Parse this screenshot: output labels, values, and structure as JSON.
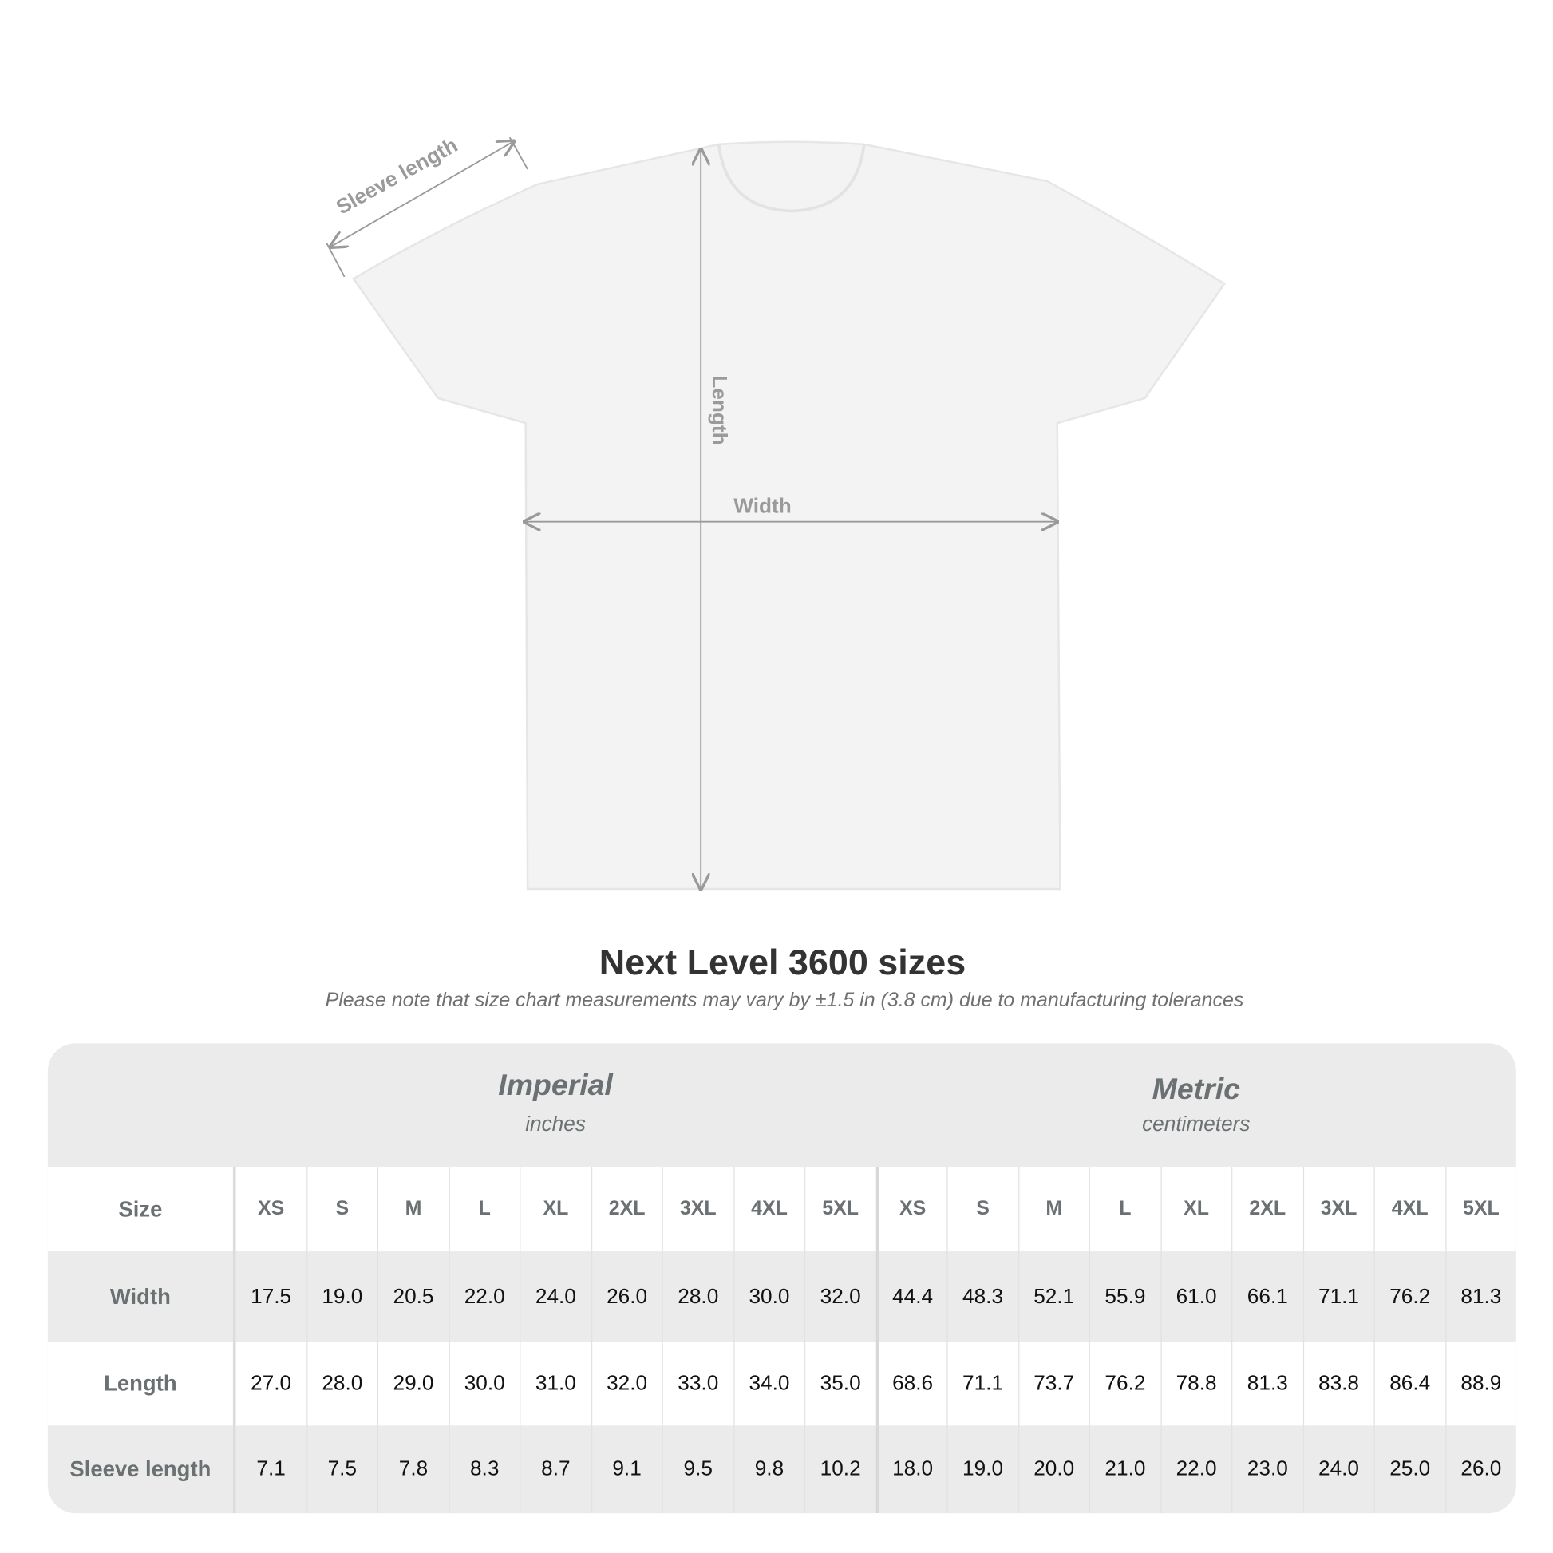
{
  "diagram": {
    "labels": {
      "sleeve": "Sleeve length",
      "length": "Length",
      "width": "Width"
    }
  },
  "title": "Next Level 3600 sizes",
  "subtitle": "Please note that size chart measurements may vary by ±1.5 in (3.8 cm) due to manufacturing tolerances",
  "table": {
    "imperial": {
      "name": "Imperial",
      "unit": "inches"
    },
    "metric": {
      "name": "Metric",
      "unit": "centimeters"
    },
    "size_label": "Size",
    "sizes": [
      "XS",
      "S",
      "M",
      "L",
      "XL",
      "2XL",
      "3XL",
      "4XL",
      "5XL"
    ],
    "rows": [
      {
        "label": "Width",
        "imperial": [
          "17.5",
          "19.0",
          "20.5",
          "22.0",
          "24.0",
          "26.0",
          "28.0",
          "30.0",
          "32.0"
        ],
        "metric": [
          "44.4",
          "48.3",
          "52.1",
          "55.9",
          "61.0",
          "66.1",
          "71.1",
          "76.2",
          "81.3"
        ]
      },
      {
        "label": "Length",
        "imperial": [
          "27.0",
          "28.0",
          "29.0",
          "30.0",
          "31.0",
          "32.0",
          "33.0",
          "34.0",
          "35.0"
        ],
        "metric": [
          "68.6",
          "71.1",
          "73.7",
          "76.2",
          "78.8",
          "81.3",
          "83.8",
          "86.4",
          "88.9"
        ]
      },
      {
        "label": "Sleeve length",
        "imperial": [
          "7.1",
          "7.5",
          "7.8",
          "8.3",
          "8.7",
          "9.1",
          "9.5",
          "9.8",
          "10.2"
        ],
        "metric": [
          "18.0",
          "19.0",
          "20.0",
          "21.0",
          "22.0",
          "23.0",
          "24.0",
          "25.0",
          "26.0"
        ]
      }
    ]
  },
  "colors": {
    "header_text": "#6b7172",
    "row_gray": "#ebebeb",
    "shirt": "#f3f3f3",
    "arrow": "#9a9a9a"
  }
}
